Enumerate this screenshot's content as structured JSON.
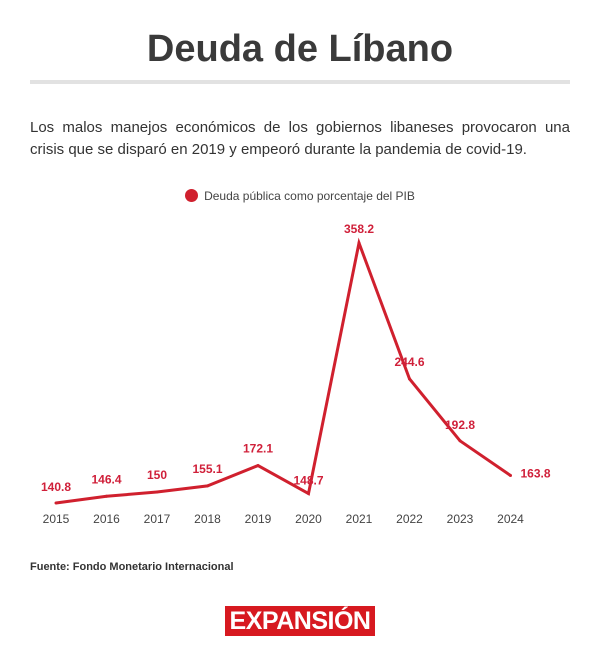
{
  "title": "Deuda de Líbano",
  "subtitle": "Los malos manejos económicos de los gobiernos libaneses provocaron una crisis que se disparó en 2019 y empeoró durante la pandemia de covid-19.",
  "source": "Fuente: Fondo Monetario Internacional",
  "logo": "EXPANSIÓN",
  "colors": {
    "series": "#d0202e",
    "label": "#d0203a",
    "logo_bg": "#d71920"
  },
  "chart_data": {
    "type": "line",
    "categories": [
      "2015",
      "2016",
      "2017",
      "2018",
      "2019",
      "2020",
      "2021",
      "2022",
      "2023",
      "2024"
    ],
    "series": [
      {
        "name": "Deuda pública como porcentaje del PIB",
        "values": [
          140.8,
          146.4,
          150,
          155.1,
          172.1,
          148.7,
          358.2,
          244.6,
          192.8,
          163.8
        ]
      }
    ],
    "data_labels": [
      "140.8",
      "146.4",
      "150",
      "155.1",
      "172.1",
      "148.7",
      "358.2",
      "244.6",
      "192.8",
      "163.8"
    ],
    "legend_position": "top",
    "grid": false,
    "y_axis_visible": false
  }
}
